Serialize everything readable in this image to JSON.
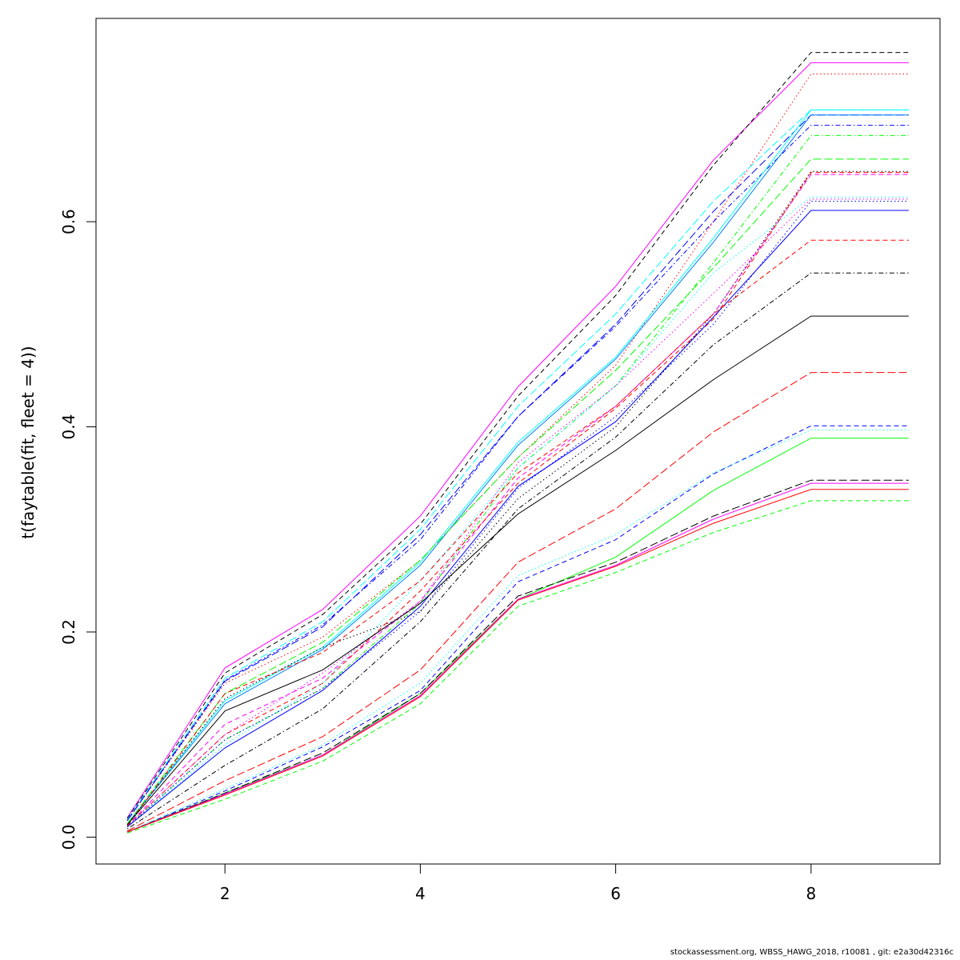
{
  "chart_data": {
    "type": "line",
    "ylabel": "t(faytable(fit, fleet = 4))",
    "xlabel": "",
    "xlim": [
      0.68,
      9.32
    ],
    "ylim": [
      -0.0262,
      0.7982
    ],
    "x": [
      1,
      2,
      3,
      4,
      5,
      6,
      7,
      8,
      9
    ],
    "x_ticks": [
      2,
      4,
      6,
      8
    ],
    "y_ticks": [
      0.0,
      0.2,
      0.4,
      0.6
    ],
    "x_tick_labels": [
      "2",
      "4",
      "6",
      "8"
    ],
    "y_tick_labels": [
      "0.0",
      "0.2",
      "0.4",
      "0.6"
    ],
    "grid": false,
    "legend": "none",
    "series": [
      {
        "color": "#ff00ff",
        "dash": "solid",
        "values": [
          0.019,
          0.165,
          0.222,
          0.313,
          0.439,
          0.537,
          0.66,
          0.755,
          0.755
        ]
      },
      {
        "color": "#000000",
        "dash": "dashed",
        "values": [
          0.018,
          0.16,
          0.217,
          0.305,
          0.43,
          0.528,
          0.655,
          0.765,
          0.765
        ]
      },
      {
        "color": "#ff0000",
        "dash": "dotted",
        "values": [
          0.016,
          0.15,
          0.195,
          0.27,
          0.37,
          0.46,
          0.6,
          0.744,
          0.744
        ]
      },
      {
        "color": "#00ffff",
        "dash": "longdash",
        "values": [
          0.017,
          0.155,
          0.21,
          0.3,
          0.42,
          0.51,
          0.62,
          0.709,
          0.709
        ]
      },
      {
        "color": "#0000ff",
        "dash": "longdash",
        "values": [
          0.016,
          0.152,
          0.205,
          0.295,
          0.41,
          0.5,
          0.61,
          0.704,
          0.704
        ]
      },
      {
        "color": "#0000ff",
        "dash": "dotdash",
        "values": [
          0.016,
          0.153,
          0.207,
          0.29,
          0.41,
          0.498,
          0.6,
          0.694,
          0.694
        ]
      },
      {
        "color": "#00ff00",
        "dash": "dotdash",
        "values": [
          0.01,
          0.095,
          0.145,
          0.228,
          0.36,
          0.44,
          0.56,
          0.684,
          0.684
        ]
      },
      {
        "color": "#00ffff",
        "dash": "solid",
        "values": [
          0.013,
          0.133,
          0.185,
          0.268,
          0.385,
          0.468,
          0.584,
          0.709,
          0.709
        ]
      },
      {
        "color": "#0080ff",
        "dash": "solid",
        "values": [
          0.013,
          0.13,
          0.183,
          0.265,
          0.382,
          0.466,
          0.58,
          0.704,
          0.704
        ]
      },
      {
        "color": "#00ff00",
        "dash": "longdash",
        "values": [
          0.013,
          0.14,
          0.19,
          0.27,
          0.37,
          0.455,
          0.555,
          0.661,
          0.661
        ]
      },
      {
        "color": "#000000",
        "dash": "dotted",
        "values": [
          0.012,
          0.135,
          0.185,
          0.22,
          0.33,
          0.4,
          0.51,
          0.649,
          0.649
        ]
      },
      {
        "color": "#ff00ff",
        "dash": "dashed",
        "values": [
          0.011,
          0.11,
          0.155,
          0.23,
          0.35,
          0.42,
          0.51,
          0.646,
          0.646
        ]
      },
      {
        "color": "#ff0000",
        "dash": "dashed",
        "values": [
          0.011,
          0.1,
          0.15,
          0.24,
          0.345,
          0.418,
          0.505,
          0.648,
          0.648
        ]
      },
      {
        "color": "#00ffff",
        "dash": "dotted",
        "values": [
          0.01,
          0.09,
          0.15,
          0.25,
          0.36,
          0.44,
          0.55,
          0.624,
          0.624
        ]
      },
      {
        "color": "#0000ff",
        "dash": "dotted",
        "values": [
          0.01,
          0.095,
          0.145,
          0.22,
          0.34,
          0.41,
          0.5,
          0.62,
          0.62
        ]
      },
      {
        "color": "#ff00ff",
        "dash": "dotted",
        "values": [
          0.011,
          0.1,
          0.16,
          0.23,
          0.365,
          0.44,
          0.53,
          0.622,
          0.622
        ]
      },
      {
        "color": "#0000ff",
        "dash": "solid",
        "values": [
          0.01,
          0.087,
          0.143,
          0.225,
          0.342,
          0.405,
          0.507,
          0.611,
          0.611
        ]
      },
      {
        "color": "#ff0000",
        "dash": "dashed",
        "values": [
          0.011,
          0.14,
          0.18,
          0.25,
          0.355,
          0.42,
          0.51,
          0.582,
          0.582
        ]
      },
      {
        "color": "#000000",
        "dash": "dotdash",
        "values": [
          0.008,
          0.07,
          0.125,
          0.21,
          0.32,
          0.39,
          0.48,
          0.55,
          0.55
        ]
      },
      {
        "color": "#000000",
        "dash": "solid",
        "values": [
          0.012,
          0.123,
          0.163,
          0.228,
          0.315,
          0.377,
          0.446,
          0.508,
          0.508
        ]
      },
      {
        "color": "#ff0000",
        "dash": "longdash",
        "values": [
          0.006,
          0.055,
          0.098,
          0.163,
          0.268,
          0.32,
          0.395,
          0.453,
          0.453
        ]
      },
      {
        "color": "#0000ff",
        "dash": "dashed",
        "values": [
          0.005,
          0.045,
          0.088,
          0.143,
          0.249,
          0.29,
          0.354,
          0.401,
          0.401
        ]
      },
      {
        "color": "#00ffff",
        "dash": "dotted",
        "values": [
          0.005,
          0.047,
          0.09,
          0.15,
          0.255,
          0.295,
          0.355,
          0.397,
          0.397
        ]
      },
      {
        "color": "#00ff00",
        "dash": "solid",
        "values": [
          0.005,
          0.043,
          0.08,
          0.14,
          0.232,
          0.273,
          0.338,
          0.389,
          0.389
        ]
      },
      {
        "color": "#000000",
        "dash": "longdash",
        "values": [
          0.005,
          0.043,
          0.082,
          0.14,
          0.235,
          0.268,
          0.313,
          0.348,
          0.348
        ]
      },
      {
        "color": "#ff00ff",
        "dash": "solid",
        "values": [
          0.005,
          0.042,
          0.08,
          0.138,
          0.232,
          0.265,
          0.31,
          0.345,
          0.345
        ]
      },
      {
        "color": "#ff0000",
        "dash": "solid",
        "values": [
          0.005,
          0.041,
          0.079,
          0.137,
          0.231,
          0.264,
          0.306,
          0.339,
          0.339
        ]
      },
      {
        "color": "#00ff00",
        "dash": "dashed",
        "values": [
          0.004,
          0.037,
          0.074,
          0.13,
          0.225,
          0.258,
          0.297,
          0.328,
          0.328
        ]
      }
    ]
  },
  "footer": {
    "text": "stockassessment.org, WBSS_HAWG_2018, r10081 , git: e2a30d42316c"
  }
}
